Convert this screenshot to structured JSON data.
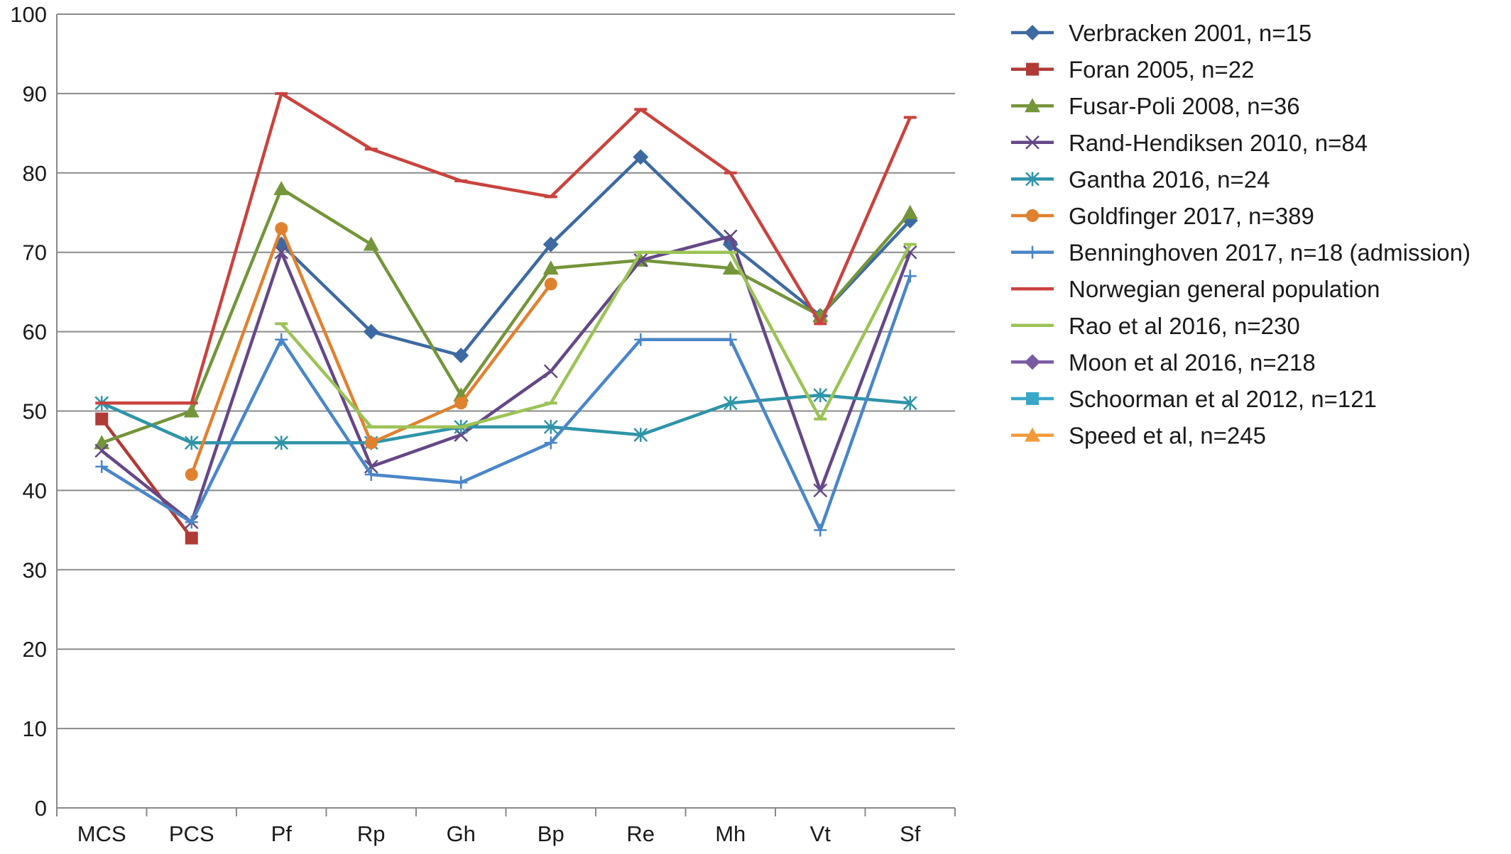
{
  "chart_data": {
    "type": "line",
    "title": "",
    "xlabel": "",
    "ylabel": "",
    "ylim": [
      0,
      100
    ],
    "yticks": [
      0,
      10,
      20,
      30,
      40,
      50,
      60,
      70,
      80,
      90,
      100
    ],
    "grid": true,
    "legend_position": "right",
    "categories": [
      "MCS",
      "PCS",
      "Pf",
      "Rp",
      "Gh",
      "Bp",
      "Re",
      "Mh",
      "Vt",
      "Sf"
    ],
    "series": [
      {
        "name": "Verbracken 2001, n=15",
        "color": "#3e6aa1",
        "marker": "diamond",
        "values": [
          null,
          null,
          71,
          60,
          57,
          71,
          82,
          71,
          62,
          74
        ]
      },
      {
        "name": "Foran 2005, n=22",
        "color": "#b03a36",
        "marker": "square",
        "values": [
          49,
          34,
          null,
          null,
          null,
          null,
          null,
          null,
          null,
          null
        ]
      },
      {
        "name": "Fusar-Poli 2008, n=36",
        "color": "#74953a",
        "marker": "triangle",
        "values": [
          46,
          50,
          78,
          71,
          52,
          68,
          69,
          68,
          62,
          75
        ]
      },
      {
        "name": "Rand-Hendiksen 2010, n=84",
        "color": "#654887",
        "marker": "x",
        "values": [
          45,
          36,
          70,
          43,
          47,
          55,
          69,
          72,
          40,
          70
        ]
      },
      {
        "name": "Gantha 2016, n=24",
        "color": "#2f94a8",
        "marker": "asterisk",
        "values": [
          51,
          46,
          46,
          46,
          48,
          48,
          47,
          51,
          52,
          51
        ]
      },
      {
        "name": "Goldfinger 2017, n=389",
        "color": "#e08130",
        "marker": "circle",
        "values": [
          null,
          42,
          73,
          46,
          51,
          66,
          null,
          null,
          null,
          null
        ]
      },
      {
        "name": "Benninghoven 2017, n=18 (admission)",
        "color": "#4a86c8",
        "marker": "plus",
        "values": [
          43,
          36,
          59,
          42,
          41,
          46,
          59,
          59,
          35,
          67
        ]
      },
      {
        "name": "Norwegian general population",
        "color": "#c9433e",
        "marker": "dash",
        "values": [
          51,
          51,
          90,
          83,
          79,
          77,
          88,
          80,
          61,
          87
        ]
      },
      {
        "name": "Rao et al 2016, n=230",
        "color": "#9bc356",
        "marker": "dash",
        "values": [
          null,
          null,
          61,
          48,
          48,
          51,
          70,
          70,
          49,
          71
        ]
      },
      {
        "name": "Moon et al 2016, n=218",
        "color": "#7a5aa3",
        "marker": "diamond",
        "values": [
          null,
          null,
          null,
          null,
          null,
          null,
          null,
          null,
          null,
          null
        ]
      },
      {
        "name": "Schoorman et al 2012, n=121",
        "color": "#3aa7c9",
        "marker": "square",
        "values": [
          null,
          null,
          null,
          null,
          null,
          null,
          null,
          null,
          null,
          null
        ]
      },
      {
        "name": "Speed et al, n=245",
        "color": "#f29a3b",
        "marker": "triangle",
        "values": [
          null,
          null,
          null,
          null,
          null,
          null,
          null,
          null,
          null,
          null
        ]
      }
    ]
  }
}
